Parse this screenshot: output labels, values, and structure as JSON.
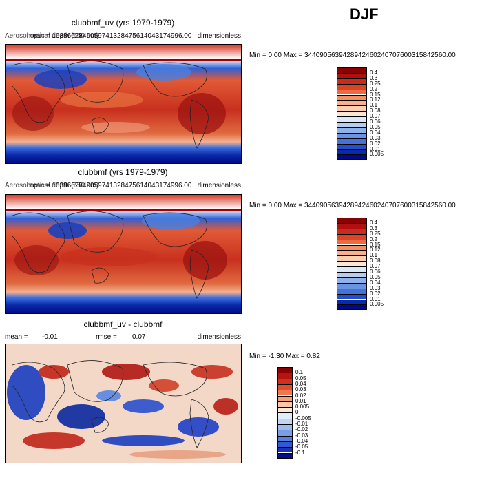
{
  "season": "DJF",
  "panels": [
    {
      "title": "clubbmf_uv (yrs 1979-1979)",
      "overlap_left": "Aerosol optical depth (550 nm)",
      "mean_text": "mean = 1038662849059741328475614043174996.00",
      "units": "dimensionless",
      "minmax": "Min =    0.00 Max = 3440905639428942460240707600315842560.00"
    },
    {
      "title": "clubbmf (yrs 1979-1979)",
      "overlap_left": "Aerosol optical depth (550 nm)",
      "mean_text": "mean = 1038662849059741328475614043174996.00",
      "units": "dimensionless",
      "minmax": "Min =    0.00 Max = 3440905639428942460240707600315842560.00"
    },
    {
      "title": "clubbmf_uv - clubbmf",
      "mean_label": "mean =",
      "mean_value": "-0.01",
      "rmse_label": "rmse =",
      "rmse_value": "0.07",
      "units": "dimensionless",
      "minmax": "Min =  -1.30 Max =    0.82"
    }
  ],
  "colorbar_abs": {
    "labels": [
      "0.4",
      "0.3",
      "0.25",
      "0.2",
      "0.15",
      "0.12",
      "0.1",
      "0.08",
      "0.07",
      "0.06",
      "0.05",
      "0.04",
      "0.03",
      "0.02",
      "0.01",
      "0.005"
    ],
    "colors": [
      "#8b0000",
      "#b01010",
      "#cc2a1a",
      "#dd4422",
      "#ee6a40",
      "#f5905e",
      "#f9b08c",
      "#fbcfb2",
      "#fde6d6",
      "#dbe8f6",
      "#b5cdf0",
      "#8fb2ea",
      "#6a94e2",
      "#4474da",
      "#2050cc",
      "#0a2aa8",
      "#000a88"
    ]
  },
  "colorbar_diff": {
    "labels": [
      "0.1",
      "0.05",
      "0.04",
      "0.03",
      "0.02",
      "0.01",
      "0.005",
      "0",
      "-0.005",
      "-0.01",
      "-0.02",
      "-0.03",
      "-0.04",
      "-0.05",
      "-0.1"
    ],
    "colors": [
      "#8b0000",
      "#b41414",
      "#d0301e",
      "#e24e2c",
      "#f0784a",
      "#f7a07a",
      "#fbc8aa",
      "#fde6d6",
      "#e0ecf8",
      "#c2d6f2",
      "#9cbcee",
      "#7a9ee6",
      "#5680de",
      "#3458d2",
      "#1a32b8",
      "#040e8c"
    ]
  }
}
